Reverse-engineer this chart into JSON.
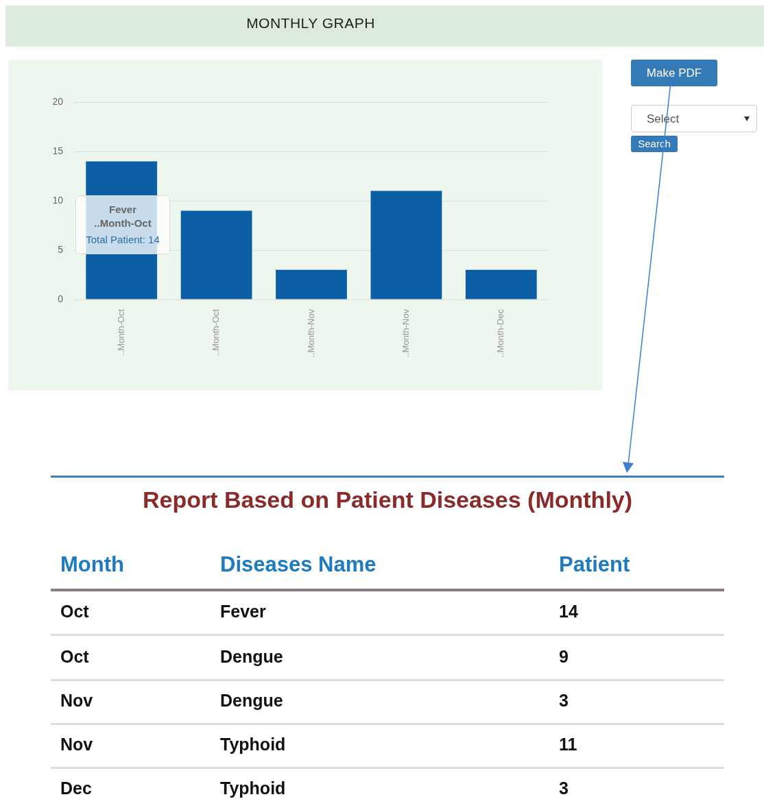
{
  "chart_data": {
    "type": "bar",
    "title": "MONTHLY GRAPH",
    "categories": [
      "..Month-Oct",
      "..Month-Oct",
      "..Month-Nov",
      "..Month-Nov",
      "..Month-Dec"
    ],
    "values": [
      14,
      9,
      3,
      11,
      3
    ],
    "color": "#0d5fa5",
    "ylim": [
      0,
      20
    ],
    "yticks": [
      0,
      5,
      10,
      15,
      20
    ],
    "grid": "y",
    "annotations": [
      "Make PDF",
      "Select",
      "Search",
      "Fever",
      "..Month-Oct",
      "Total Patient: 14",
      "Report Based on Patient Diseases (Monthly)",
      "Month",
      "Diseases Name",
      "Patient",
      "Oct",
      "Fever",
      "14",
      "Oct",
      "Dengue",
      "9",
      "Nov",
      "Dengue",
      "3",
      "Nov",
      "Typhoid",
      "11",
      "Dec",
      "Typhoid",
      "3"
    ]
  }
}
